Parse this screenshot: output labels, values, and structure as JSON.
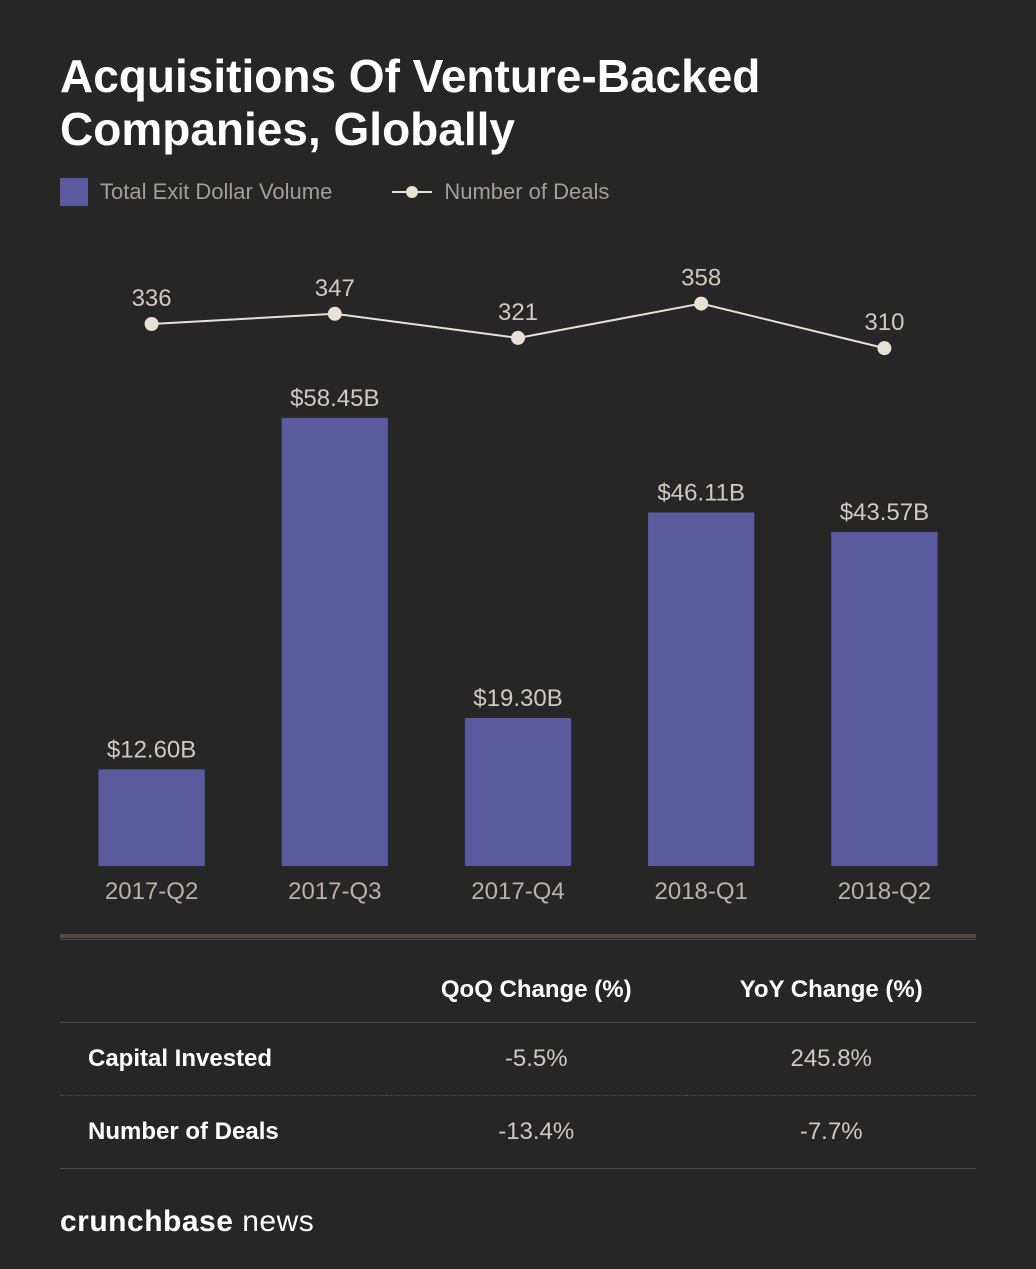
{
  "title": "Acquisitions Of Venture-Backed Companies, Globally",
  "legend": {
    "bar_label": "Total Exit Dollar Volume",
    "line_label": "Number of Deals",
    "bar_color": "#5b5a9e",
    "line_color": "#e8e1d6"
  },
  "chart": {
    "type": "bar+line",
    "categories": [
      "2017-Q2",
      "2017-Q3",
      "2017-Q4",
      "2018-Q1",
      "2018-Q2"
    ],
    "bar_values": [
      12.6,
      58.45,
      19.3,
      46.11,
      43.57
    ],
    "bar_labels": [
      "$12.60B",
      "$58.45B",
      "$19.30B",
      "$46.11B",
      "$43.57B"
    ],
    "bar_color": "#5b5a9e",
    "bar_y_max": 60,
    "bar_width_ratio": 0.58,
    "line_values": [
      336,
      347,
      321,
      358,
      310
    ],
    "line_labels": [
      "336",
      "347",
      "321",
      "358",
      "310"
    ],
    "line_color": "#e8e1d6",
    "line_marker_fill": "#e8e1d6",
    "line_width": 2,
    "marker_radius": 7,
    "line_y_min": 280,
    "line_y_max": 420,
    "background_color": "#262626",
    "label_color": "#cfc9c0",
    "x_label_color": "#b9b2a9",
    "label_fontsize": 24,
    "x_label_fontsize": 24
  },
  "table": {
    "columns": [
      "",
      "QoQ Change (%)",
      "YoY Change (%)"
    ],
    "rows": [
      {
        "label": "Capital Invested",
        "qoq": "-5.5%",
        "yoy": "245.8%"
      },
      {
        "label": "Number of Deals",
        "qoq": "-13.4%",
        "yoy": "-7.7%"
      }
    ],
    "header_color": "#ffffff",
    "cell_color": "#cfc9c0",
    "border_color": "#4f4b46"
  },
  "footer": {
    "brand_bold": "crunchbase",
    "brand_light": " news",
    "color": "#ffffff"
  }
}
